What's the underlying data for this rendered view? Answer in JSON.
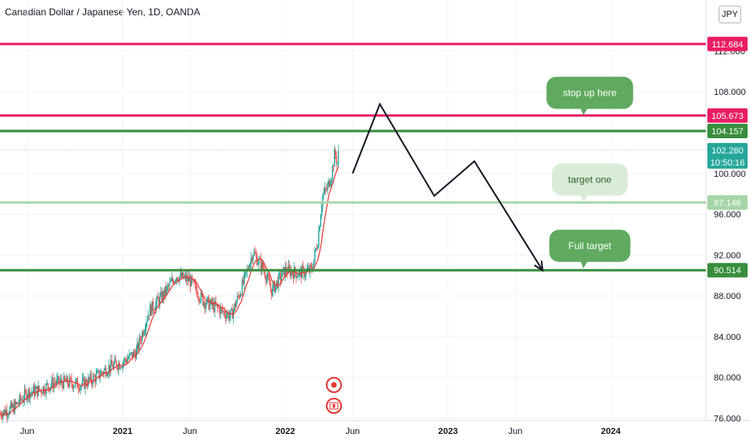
{
  "header": {
    "title": "Canadian Dollar / Japanese Yen, 1D, OANDA",
    "currency": "JPY"
  },
  "chart_data": {
    "type": "candlestick",
    "symbol": "CADJPY",
    "timeframe": "1D",
    "source": "OANDA",
    "y_ticks": [
      {
        "value": 76.0,
        "label": "76.000"
      },
      {
        "value": 80.0,
        "label": "80.000"
      },
      {
        "value": 84.0,
        "label": "84.000"
      },
      {
        "value": 88.0,
        "label": "88.000"
      },
      {
        "value": 92.0,
        "label": "92.000"
      },
      {
        "value": 96.0,
        "label": "96.000"
      },
      {
        "value": 100.0,
        "label": "100.000"
      },
      {
        "value": 104.0,
        "label": "104.000"
      },
      {
        "value": 108.0,
        "label": "108.000"
      },
      {
        "value": 112.0,
        "label": "112.000"
      }
    ],
    "x_ticks": [
      {
        "date": "2020-06-01",
        "label": "Jun",
        "bold": false
      },
      {
        "date": "2021-01-01",
        "label": "2021",
        "bold": true
      },
      {
        "date": "2021-06-01",
        "label": "Jun",
        "bold": false
      },
      {
        "date": "2022-01-01",
        "label": "2022",
        "bold": true
      },
      {
        "date": "2022-06-01",
        "label": "Jun",
        "bold": false
      },
      {
        "date": "2023-01-01",
        "label": "2023",
        "bold": true
      },
      {
        "date": "2023-06-01",
        "label": "Jun",
        "bold": false
      },
      {
        "date": "2024-01-01",
        "label": "2024",
        "bold": true
      }
    ],
    "ylim": [
      75.8,
      117.0
    ],
    "xlim": [
      "2020-04-01",
      "2024-08-01"
    ],
    "price_series": [
      {
        "date": "2020-04-01",
        "value": 76.5
      },
      {
        "date": "2020-05-01",
        "value": 77.0
      },
      {
        "date": "2020-06-01",
        "value": 78.5
      },
      {
        "date": "2020-07-01",
        "value": 78.8
      },
      {
        "date": "2020-08-01",
        "value": 79.5
      },
      {
        "date": "2020-09-01",
        "value": 79.5
      },
      {
        "date": "2020-10-01",
        "value": 79.3
      },
      {
        "date": "2020-11-01",
        "value": 80.0
      },
      {
        "date": "2020-12-01",
        "value": 81.0
      },
      {
        "date": "2021-01-01",
        "value": 81.5
      },
      {
        "date": "2021-02-01",
        "value": 82.5
      },
      {
        "date": "2021-03-01",
        "value": 86.5
      },
      {
        "date": "2021-04-01",
        "value": 88.0
      },
      {
        "date": "2021-05-01",
        "value": 90.0
      },
      {
        "date": "2021-06-01",
        "value": 89.5
      },
      {
        "date": "2021-07-01",
        "value": 87.5
      },
      {
        "date": "2021-08-01",
        "value": 86.8
      },
      {
        "date": "2021-09-01",
        "value": 86.0
      },
      {
        "date": "2021-10-01",
        "value": 89.5
      },
      {
        "date": "2021-10-20",
        "value": 92.3
      },
      {
        "date": "2021-11-15",
        "value": 90.5
      },
      {
        "date": "2021-12-01",
        "value": 88.5
      },
      {
        "date": "2022-01-01",
        "value": 90.5
      },
      {
        "date": "2022-02-01",
        "value": 90.2
      },
      {
        "date": "2022-03-01",
        "value": 90.5
      },
      {
        "date": "2022-03-15",
        "value": 93.5
      },
      {
        "date": "2022-03-25",
        "value": 97.8
      },
      {
        "date": "2022-04-05",
        "value": 98.5
      },
      {
        "date": "2022-04-15",
        "value": 100.0
      },
      {
        "date": "2022-04-22",
        "value": 102.0
      },
      {
        "date": "2022-04-28",
        "value": 101.0
      },
      {
        "date": "2022-05-01",
        "value": 102.28
      }
    ],
    "horizontal_lines": [
      {
        "value": 112.684,
        "label": "112.684",
        "color": "#e91e63",
        "width": 3
      },
      {
        "value": 105.673,
        "label": "105.673",
        "color": "#e91e63",
        "width": 3
      },
      {
        "value": 104.157,
        "label": "104.157",
        "color": "#388e3c",
        "width": 3
      },
      {
        "value": 97.146,
        "label": "97.146",
        "color": "#a5d6a7",
        "width": 3
      },
      {
        "value": 90.514,
        "label": "90.514",
        "color": "#388e3c",
        "width": 3
      }
    ],
    "last_price": {
      "value": 102.28,
      "label": "102.280",
      "countdown": "10:50:16",
      "color": "#26a69a"
    },
    "projection_path": [
      {
        "date": "2022-06-01",
        "value": 100.0
      },
      {
        "date": "2022-08-01",
        "value": 106.8
      },
      {
        "date": "2022-12-01",
        "value": 97.8
      },
      {
        "date": "2023-03-01",
        "value": 101.2
      },
      {
        "date": "2023-08-01",
        "value": 90.5
      }
    ],
    "annotations": [
      {
        "text": "stop up here",
        "bg": "#5faa5f",
        "fg": "#ffffff",
        "anchor_date": "2023-11-15",
        "anchor_value": 107.9
      },
      {
        "text": "target one",
        "bg": "#d8ecd8",
        "fg": "#2e5e2e",
        "anchor_date": "2023-11-15",
        "anchor_value": 99.4
      },
      {
        "text": "Full target",
        "bg": "#5faa5f",
        "fg": "#ffffff",
        "anchor_date": "2023-11-15",
        "anchor_value": 92.9
      }
    ],
    "events": [
      {
        "date": "2022-04-20",
        "icon": "economic-event-icon",
        "color": "#e53935"
      },
      {
        "date": "2022-04-20",
        "icon": "canada-flag-icon",
        "color": "#e53935"
      }
    ],
    "colors": {
      "up": "#26a69a",
      "down": "#ef5350",
      "ma": "#e53935"
    }
  }
}
